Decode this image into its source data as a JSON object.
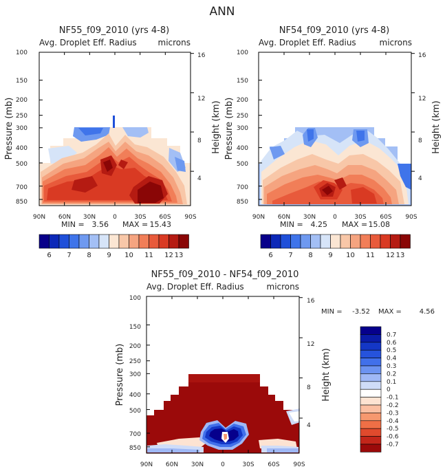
{
  "page_title": "ANN",
  "colors": {
    "div": [
      "#08008a",
      "#0c28b8",
      "#1f4fd9",
      "#3f74ea",
      "#6e99f0",
      "#a3bff5",
      "#d6e4f8",
      "#fbe6d3",
      "#f8c7a8",
      "#f5a480",
      "#f17e58",
      "#e85a3b",
      "#d93a23",
      "#b51b12",
      "#8a0606"
    ],
    "diff": [
      "#06008c",
      "#0b1ca8",
      "#1437c6",
      "#2653dc",
      "#4170ea",
      "#6c93f1",
      "#9fb8f6",
      "#cfdcf8",
      "#ffffff",
      "#fde3d2",
      "#fbbfa2",
      "#f6986f",
      "#ef6f46",
      "#e04a2d",
      "#c3261a",
      "#9b0a0a"
    ]
  },
  "chart_data": [
    {
      "type": "contour",
      "title": "NF55_f09_2010 (yrs 4-8)",
      "subtitle": "Avg. Droplet Eff. Radius",
      "units": "microns",
      "ylabel": "Pressure (mb)",
      "y2label": "Height (km)",
      "x_ticks": [
        "90N",
        "60N",
        "30N",
        "0",
        "30S",
        "60S",
        "90S"
      ],
      "y_ticks": [
        "100",
        "150",
        "200",
        "250",
        "300",
        "400",
        "500",
        "700",
        "850"
      ],
      "y_ticks_values": [
        100,
        150,
        200,
        250,
        300,
        400,
        500,
        700,
        850
      ],
      "y2_ticks": [
        "16",
        "12",
        "8",
        "4"
      ],
      "y2_ticks_values": [
        16,
        12,
        8,
        4
      ],
      "min_label": "MIN =",
      "min_value": "3.56",
      "max_label": "MAX =",
      "max_value": "15.43",
      "colorbar": {
        "labels": [
          "6",
          "7",
          "8",
          "9",
          "10",
          "11",
          "12",
          "13"
        ],
        "label_bins": [
          1,
          3,
          5,
          7,
          9,
          11,
          13,
          14
        ]
      }
    },
    {
      "type": "contour",
      "title": "NF54_f09_2010 (yrs 4-8)",
      "subtitle": "Avg. Droplet Eff. Radius",
      "units": "microns",
      "ylabel": "Pressure (mb)",
      "y2label": "Height (km)",
      "x_ticks": [
        "90N",
        "60N",
        "30N",
        "0",
        "30S",
        "60S",
        "90S"
      ],
      "y_ticks": [
        "100",
        "150",
        "200",
        "250",
        "300",
        "400",
        "500",
        "700",
        "850"
      ],
      "y_ticks_values": [
        100,
        150,
        200,
        250,
        300,
        400,
        500,
        700,
        850
      ],
      "y2_ticks": [
        "16",
        "12",
        "8",
        "4"
      ],
      "y2_ticks_values": [
        16,
        12,
        8,
        4
      ],
      "min_label": "MIN =",
      "min_value": "4.25",
      "max_label": "MAX =",
      "max_value": "15.08",
      "colorbar": {
        "labels": [
          "6",
          "7",
          "8",
          "9",
          "10",
          "11",
          "12",
          "13"
        ],
        "label_bins": [
          1,
          3,
          5,
          7,
          9,
          11,
          13,
          14
        ]
      }
    },
    {
      "type": "contour",
      "title": "NF55_f09_2010 - NF54_f09_2010",
      "subtitle": "Avg. Droplet Eff. Radius",
      "units": "microns",
      "ylabel": "Pressure (mb)",
      "y2label": "Height (km)",
      "x_ticks": [
        "90N",
        "60N",
        "30N",
        "0",
        "30S",
        "60S",
        "90S"
      ],
      "y_ticks": [
        "100",
        "150",
        "200",
        "250",
        "300",
        "400",
        "500",
        "700",
        "850"
      ],
      "y_ticks_values": [
        100,
        150,
        200,
        250,
        300,
        400,
        500,
        700,
        850
      ],
      "y2_ticks": [
        "16",
        "12",
        "8",
        "4"
      ],
      "y2_ticks_values": [
        16,
        12,
        8,
        4
      ],
      "min_label": "MIN =",
      "min_value": "-3.52",
      "max_label": "MAX =",
      "max_value": "4.56",
      "colorbar": {
        "labels": [
          "0.7",
          "0.6",
          "0.5",
          "0.4",
          "0.3",
          "0.2",
          "0.1",
          "0",
          "-0.1",
          "-0.2",
          "-0.3",
          "-0.4",
          "-0.5",
          "-0.6",
          "-0.7"
        ]
      }
    }
  ]
}
